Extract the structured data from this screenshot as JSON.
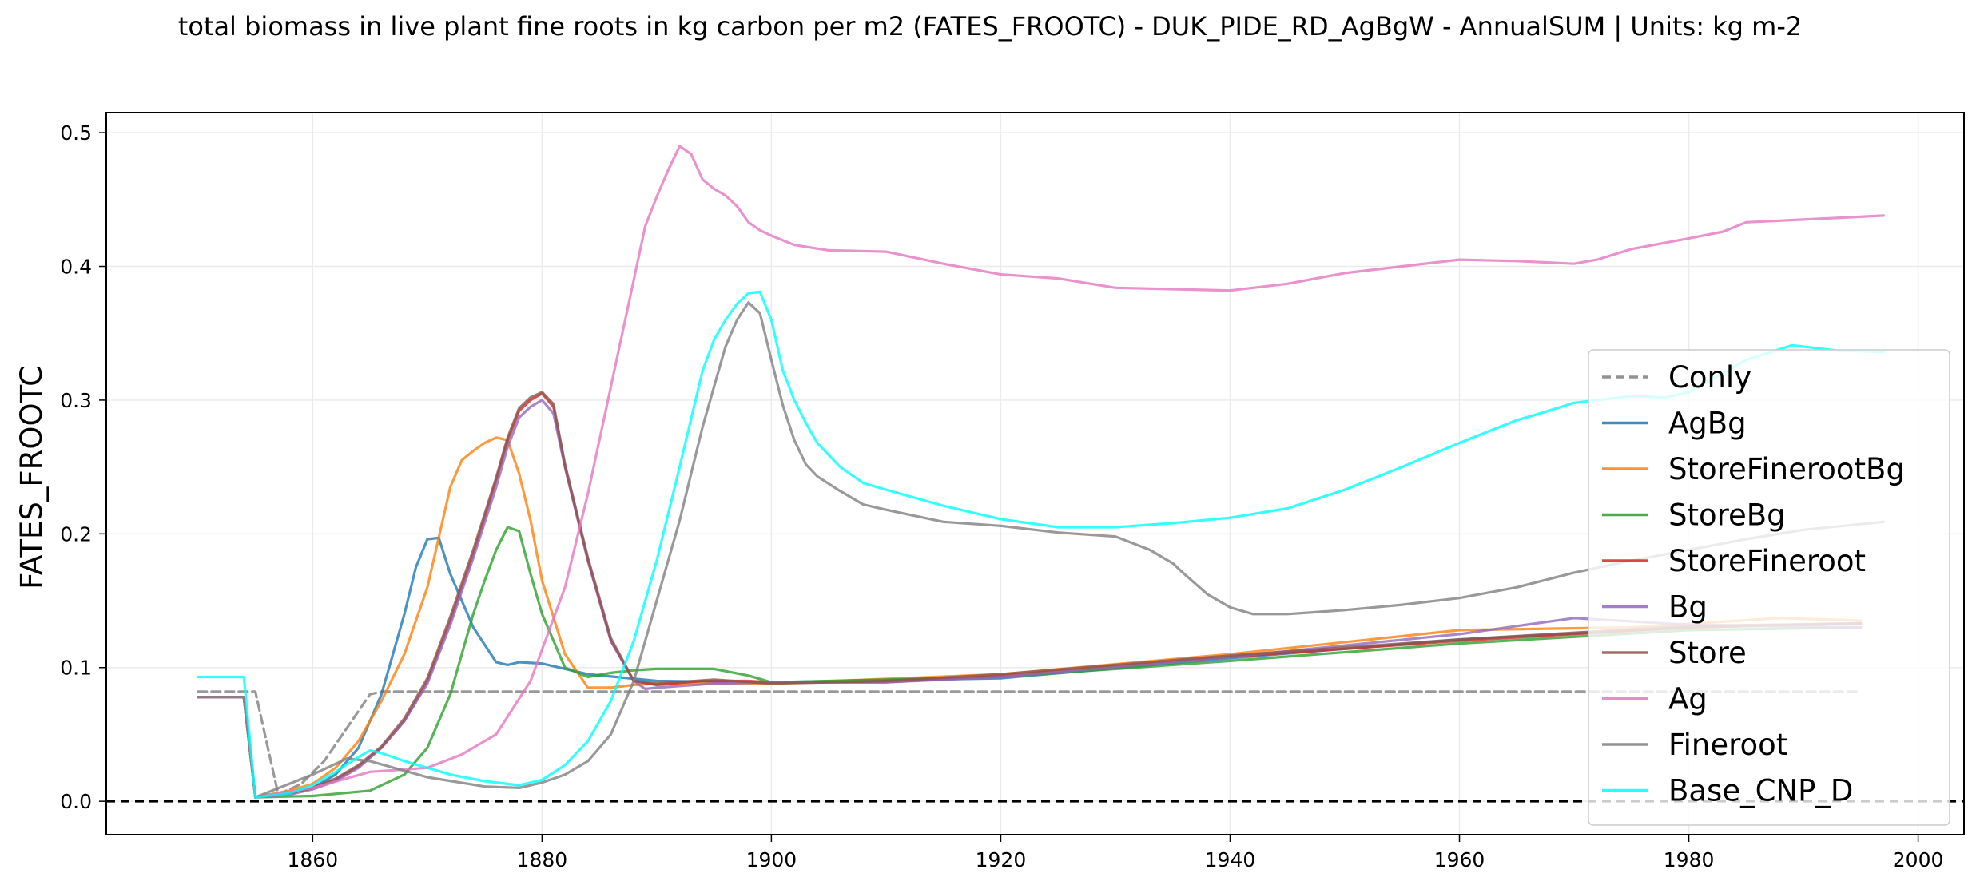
{
  "chart_data": {
    "type": "line",
    "title": "total biomass in live plant fine roots in kg carbon per m2 (FATES_FROOTC) - DUK_PIDE_RD_AgBgW - AnnualSUM | Units: kg m-2",
    "xlabel": "",
    "ylabel": "FATES_FROOTC",
    "xlim": [
      1842,
      2004
    ],
    "ylim": [
      -0.025,
      0.515
    ],
    "xticks": [
      1860,
      1880,
      1900,
      1920,
      1940,
      1960,
      1980,
      2000
    ],
    "yticks": [
      0.0,
      0.1,
      0.2,
      0.3,
      0.4,
      0.5
    ],
    "ytick_labels": [
      "0.0",
      "0.1",
      "0.2",
      "0.3",
      "0.4",
      "0.5"
    ],
    "grid": true,
    "legend_position": "center-right",
    "reference_line": {
      "y": 0.0,
      "style": "dashed",
      "color": "#000000"
    },
    "series": [
      {
        "name": "Conly",
        "color": "#7f7f7f",
        "dash": true,
        "x": [
          1850,
          1855,
          1857,
          1859,
          1861,
          1863,
          1865,
          1866,
          1870,
          1880,
          1900,
          1920,
          1940,
          1960,
          1980,
          1995
        ],
        "y": [
          0.082,
          0.082,
          0.005,
          0.013,
          0.03,
          0.055,
          0.08,
          0.082,
          0.082,
          0.082,
          0.082,
          0.082,
          0.082,
          0.082,
          0.082,
          0.082
        ]
      },
      {
        "name": "AgBg",
        "color": "#1f77b4",
        "x": [
          1850,
          1854,
          1855,
          1858,
          1860,
          1862,
          1864,
          1866,
          1868,
          1869,
          1870,
          1871,
          1872,
          1874,
          1876,
          1877,
          1878,
          1880,
          1884,
          1890,
          1900,
          1920,
          1940,
          1960,
          1980,
          1995
        ],
        "y": [
          0.078,
          0.078,
          0.003,
          0.006,
          0.01,
          0.02,
          0.04,
          0.08,
          0.14,
          0.175,
          0.196,
          0.197,
          0.17,
          0.13,
          0.104,
          0.102,
          0.104,
          0.103,
          0.095,
          0.09,
          0.089,
          0.092,
          0.107,
          0.121,
          0.13,
          0.133
        ]
      },
      {
        "name": "StoreFinerootBg",
        "color": "#ff7f0e",
        "x": [
          1850,
          1854,
          1855,
          1858,
          1860,
          1862,
          1864,
          1866,
          1868,
          1870,
          1872,
          1873,
          1874,
          1875,
          1876,
          1877,
          1878,
          1879,
          1880,
          1882,
          1884,
          1886,
          1888,
          1890,
          1900,
          1920,
          1940,
          1960,
          1975,
          1988,
          1995
        ],
        "y": [
          0.078,
          0.078,
          0.003,
          0.008,
          0.013,
          0.025,
          0.045,
          0.075,
          0.11,
          0.16,
          0.235,
          0.255,
          0.262,
          0.268,
          0.272,
          0.27,
          0.245,
          0.21,
          0.165,
          0.11,
          0.085,
          0.085,
          0.087,
          0.088,
          0.088,
          0.095,
          0.11,
          0.128,
          0.13,
          0.137,
          0.135
        ]
      },
      {
        "name": "StoreBg",
        "color": "#2ca02c",
        "x": [
          1850,
          1854,
          1855,
          1860,
          1865,
          1868,
          1870,
          1872,
          1874,
          1875,
          1876,
          1877,
          1878,
          1879,
          1880,
          1882,
          1884,
          1886,
          1888,
          1890,
          1895,
          1898,
          1900,
          1920,
          1940,
          1960,
          1980,
          1995
        ],
        "y": [
          0.078,
          0.078,
          0.003,
          0.004,
          0.008,
          0.02,
          0.04,
          0.08,
          0.14,
          0.165,
          0.188,
          0.205,
          0.202,
          0.17,
          0.14,
          0.1,
          0.093,
          0.096,
          0.098,
          0.099,
          0.099,
          0.094,
          0.089,
          0.093,
          0.105,
          0.118,
          0.128,
          0.13
        ]
      },
      {
        "name": "StoreFineroot",
        "color": "#d62728",
        "x": [
          1850,
          1854,
          1855,
          1858,
          1860,
          1862,
          1864,
          1866,
          1868,
          1870,
          1872,
          1874,
          1876,
          1877,
          1878,
          1879,
          1880,
          1881,
          1882,
          1884,
          1886,
          1888,
          1890,
          1894,
          1898,
          1900,
          1910,
          1920,
          1940,
          1960,
          1980,
          1995
        ],
        "y": [
          0.078,
          0.078,
          0.003,
          0.006,
          0.01,
          0.016,
          0.026,
          0.04,
          0.06,
          0.09,
          0.135,
          0.185,
          0.24,
          0.27,
          0.292,
          0.3,
          0.305,
          0.295,
          0.25,
          0.18,
          0.12,
          0.09,
          0.087,
          0.09,
          0.09,
          0.089,
          0.089,
          0.094,
          0.108,
          0.12,
          0.13,
          0.133
        ]
      },
      {
        "name": "Bg",
        "color": "#9467bd",
        "x": [
          1850,
          1854,
          1855,
          1858,
          1860,
          1862,
          1864,
          1866,
          1868,
          1870,
          1872,
          1874,
          1876,
          1877,
          1878,
          1879,
          1880,
          1881,
          1882,
          1884,
          1886,
          1888,
          1889,
          1890,
          1895,
          1900,
          1910,
          1920,
          1940,
          1960,
          1970,
          1980,
          1995
        ],
        "y": [
          0.078,
          0.078,
          0.003,
          0.005,
          0.009,
          0.015,
          0.025,
          0.04,
          0.06,
          0.088,
          0.132,
          0.182,
          0.235,
          0.265,
          0.287,
          0.295,
          0.3,
          0.29,
          0.25,
          0.18,
          0.12,
          0.09,
          0.084,
          0.085,
          0.088,
          0.089,
          0.089,
          0.093,
          0.108,
          0.125,
          0.137,
          0.132,
          0.13
        ]
      },
      {
        "name": "Store",
        "color": "#8c564b",
        "x": [
          1850,
          1854,
          1855,
          1858,
          1860,
          1862,
          1864,
          1866,
          1868,
          1870,
          1872,
          1874,
          1876,
          1877,
          1878,
          1879,
          1880,
          1881,
          1882,
          1884,
          1886,
          1888,
          1890,
          1895,
          1900,
          1910,
          1920,
          1940,
          1960,
          1980,
          1995
        ],
        "y": [
          0.078,
          0.078,
          0.003,
          0.006,
          0.01,
          0.017,
          0.027,
          0.041,
          0.062,
          0.092,
          0.138,
          0.188,
          0.242,
          0.272,
          0.294,
          0.302,
          0.306,
          0.297,
          0.252,
          0.182,
          0.122,
          0.09,
          0.088,
          0.091,
          0.088,
          0.09,
          0.095,
          0.109,
          0.121,
          0.131,
          0.133
        ]
      },
      {
        "name": "Ag",
        "color": "#e377c2",
        "x": [
          1850,
          1854,
          1855,
          1860,
          1865,
          1870,
          1873,
          1876,
          1879,
          1882,
          1884,
          1886,
          1888,
          1889,
          1890,
          1891,
          1892,
          1893,
          1894,
          1895,
          1896,
          1897,
          1898,
          1899,
          1900,
          1902,
          1905,
          1910,
          1915,
          1920,
          1925,
          1930,
          1935,
          1940,
          1945,
          1950,
          1955,
          1960,
          1965,
          1970,
          1972,
          1975,
          1980,
          1983,
          1985,
          1990,
          1997
        ],
        "y": [
          0.078,
          0.078,
          0.003,
          0.01,
          0.022,
          0.025,
          0.035,
          0.05,
          0.09,
          0.16,
          0.23,
          0.31,
          0.39,
          0.43,
          0.452,
          0.472,
          0.49,
          0.484,
          0.465,
          0.458,
          0.453,
          0.445,
          0.433,
          0.427,
          0.423,
          0.416,
          0.412,
          0.411,
          0.402,
          0.394,
          0.391,
          0.384,
          0.383,
          0.382,
          0.387,
          0.395,
          0.4,
          0.405,
          0.404,
          0.402,
          0.405,
          0.413,
          0.421,
          0.426,
          0.433,
          0.435,
          0.438
        ]
      },
      {
        "name": "Fineroot",
        "color": "#7f7f7f",
        "x": [
          1850,
          1854,
          1855,
          1860,
          1863,
          1865,
          1870,
          1875,
          1878,
          1880,
          1882,
          1884,
          1886,
          1888,
          1890,
          1892,
          1894,
          1895,
          1896,
          1897,
          1898,
          1899,
          1900,
          1901,
          1902,
          1903,
          1904,
          1906,
          1908,
          1910,
          1915,
          1920,
          1925,
          1930,
          1933,
          1935,
          1936,
          1938,
          1940,
          1942,
          1945,
          1950,
          1955,
          1960,
          1965,
          1970,
          1975,
          1980,
          1985,
          1990,
          1997
        ],
        "y": [
          0.078,
          0.078,
          0.003,
          0.02,
          0.032,
          0.03,
          0.018,
          0.011,
          0.01,
          0.014,
          0.02,
          0.03,
          0.05,
          0.09,
          0.15,
          0.21,
          0.28,
          0.31,
          0.34,
          0.36,
          0.373,
          0.365,
          0.33,
          0.296,
          0.27,
          0.252,
          0.243,
          0.232,
          0.222,
          0.218,
          0.209,
          0.206,
          0.201,
          0.198,
          0.188,
          0.178,
          0.17,
          0.155,
          0.145,
          0.14,
          0.14,
          0.143,
          0.147,
          0.152,
          0.16,
          0.171,
          0.18,
          0.188,
          0.196,
          0.203,
          0.209
        ]
      },
      {
        "name": "Base_CNP_D",
        "color": "#00ffff",
        "x": [
          1850,
          1854,
          1855,
          1858,
          1860,
          1862,
          1864,
          1865,
          1866,
          1868,
          1870,
          1872,
          1875,
          1878,
          1880,
          1882,
          1884,
          1886,
          1888,
          1890,
          1892,
          1894,
          1895,
          1896,
          1897,
          1898,
          1899,
          1900,
          1901,
          1902,
          1903,
          1904,
          1906,
          1908,
          1910,
          1915,
          1920,
          1925,
          1930,
          1935,
          1940,
          1945,
          1950,
          1955,
          1960,
          1965,
          1967,
          1970,
          1975,
          1978,
          1980,
          1985,
          1989,
          1993,
          1997
        ],
        "y": [
          0.093,
          0.093,
          0.003,
          0.006,
          0.012,
          0.022,
          0.033,
          0.038,
          0.036,
          0.03,
          0.025,
          0.02,
          0.015,
          0.012,
          0.016,
          0.027,
          0.045,
          0.075,
          0.12,
          0.18,
          0.25,
          0.322,
          0.345,
          0.36,
          0.372,
          0.38,
          0.381,
          0.36,
          0.322,
          0.3,
          0.283,
          0.268,
          0.25,
          0.238,
          0.233,
          0.221,
          0.211,
          0.205,
          0.205,
          0.208,
          0.212,
          0.219,
          0.233,
          0.25,
          0.268,
          0.285,
          0.29,
          0.298,
          0.303,
          0.302,
          0.306,
          0.33,
          0.341,
          0.337,
          0.336
        ]
      }
    ]
  }
}
